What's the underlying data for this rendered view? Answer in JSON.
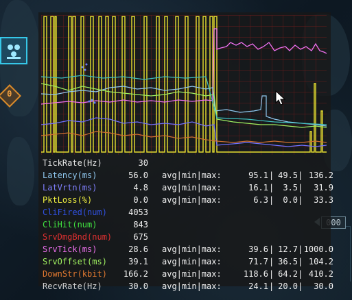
{
  "hud": {
    "counter_value": "000"
  },
  "graph": {
    "lines": [
      {
        "name": "tickrate",
        "color": "#e8e030"
      },
      {
        "name": "latency",
        "color": "#90c8f0"
      },
      {
        "name": "srvtick",
        "color": "#f070f0"
      },
      {
        "name": "srvoffset",
        "color": "#90e060"
      },
      {
        "name": "downstr",
        "color": "#d07030"
      },
      {
        "name": "latvrtn",
        "color": "#7070ff"
      },
      {
        "name": "recvrate",
        "color": "#40c0c0"
      }
    ]
  },
  "stats": {
    "avg_min_max_label": "avg|min|max:",
    "rows": [
      {
        "label": "TickRate(Hz)",
        "color": "#e8e8e8",
        "value": "30",
        "has_stats": false
      },
      {
        "label": "Latency(ms)",
        "color": "#90c8f0",
        "value": "56.0",
        "has_stats": true,
        "avg": "95.1",
        "min": "49.5",
        "max": "136.2"
      },
      {
        "label": "LatVrtn(ms)",
        "color": "#8080ff",
        "value": "4.8",
        "has_stats": true,
        "avg": "16.1",
        "min": "3.5",
        "max": "31.9"
      },
      {
        "label": "PktLoss(%)",
        "color": "#f0f040",
        "value": "0.0",
        "has_stats": true,
        "avg": "6.3",
        "min": "0.0",
        "max": "33.3"
      },
      {
        "label": "CliFired(num)",
        "color": "#3050e0",
        "value": "4053",
        "has_stats": false
      },
      {
        "label": "CliHit(num)",
        "color": "#40e040",
        "value": "843",
        "has_stats": false
      },
      {
        "label": "SrvDmgBnd(num)",
        "color": "#e03030",
        "value": "675",
        "has_stats": false
      },
      {
        "label": "SrvTick(ms)",
        "color": "#f070f0",
        "value": "28.6",
        "has_stats": true,
        "avg": "39.6",
        "min": "12.7",
        "max": "1000.0"
      },
      {
        "label": "SrvOffset(ms)",
        "color": "#a0f060",
        "value": "39.1",
        "has_stats": true,
        "avg": "71.7",
        "min": "36.5",
        "max": "104.2"
      },
      {
        "label": "DownStr(kbit)",
        "color": "#e07830",
        "value": "166.2",
        "has_stats": true,
        "avg": "118.6",
        "min": "64.2",
        "max": "410.2"
      },
      {
        "label": "RecvRate(Hz)",
        "color": "#d0d0d0",
        "value": "30.0",
        "has_stats": true,
        "avg": "24.1",
        "min": "20.0",
        "max": "30.0"
      }
    ]
  }
}
